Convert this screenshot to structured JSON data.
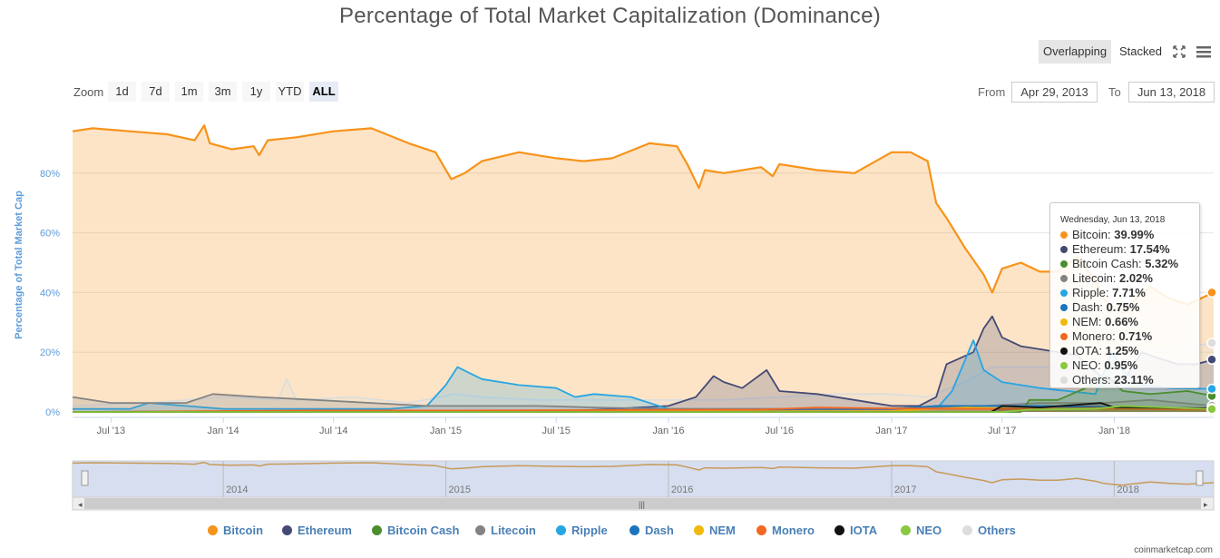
{
  "title": "Percentage of Total Market Capitalization (Dominance)",
  "controls": {
    "overlapping": "Overlapping",
    "stacked": "Stacked",
    "zoom_label": "Zoom",
    "zoom_buttons": [
      "1d",
      "7d",
      "1m",
      "3m",
      "1y",
      "YTD",
      "ALL"
    ],
    "from_label": "From",
    "from_value": "Apr 29, 2013",
    "to_label": "To",
    "to_value": "Jun 13, 2018"
  },
  "tooltip": {
    "date": "Wednesday, Jun 13, 2018",
    "rows": [
      {
        "name": "Bitcoin",
        "value": "39.99%"
      },
      {
        "name": "Ethereum",
        "value": "17.54%"
      },
      {
        "name": "Bitcoin Cash",
        "value": "5.32%"
      },
      {
        "name": "Litecoin",
        "value": "2.02%"
      },
      {
        "name": "Ripple",
        "value": "7.71%"
      },
      {
        "name": "Dash",
        "value": "0.75%"
      },
      {
        "name": "NEM",
        "value": "0.66%"
      },
      {
        "name": "Monero",
        "value": "0.71%"
      },
      {
        "name": "IOTA",
        "value": "1.25%"
      },
      {
        "name": "NEO",
        "value": "0.95%"
      },
      {
        "name": "Others",
        "value": "23.11%"
      }
    ]
  },
  "navigator": {
    "years": [
      "2014",
      "2015",
      "2016",
      "2017",
      "2018"
    ]
  },
  "credit": "coinmarketcap.com",
  "chart_data": {
    "type": "area",
    "title": "Percentage of Total Market Capitalization (Dominance)",
    "ylabel": "Percentage of Total Market Cap",
    "xlabel": "",
    "ylim": [
      0,
      100
    ],
    "y_ticks": [
      "0%",
      "20%",
      "40%",
      "60%",
      "80%"
    ],
    "x_ticks": [
      "Jul '13",
      "Jan '14",
      "Jul '14",
      "Jan '15",
      "Jul '15",
      "Jan '16",
      "Jul '16",
      "Jan '17",
      "Jul '17",
      "Jan '18"
    ],
    "x_range": [
      "2013-04-29",
      "2018-06-13"
    ],
    "grid": true,
    "legend_position": "bottom",
    "series": [
      {
        "name": "Bitcoin",
        "color": "#f7931a",
        "x": [
          "2013-04-29",
          "2013-06-01",
          "2013-08-01",
          "2013-10-01",
          "2013-11-15",
          "2013-12-01",
          "2013-12-10",
          "2014-01-15",
          "2014-02-20",
          "2014-03-01",
          "2014-03-15",
          "2014-05-01",
          "2014-07-01",
          "2014-09-01",
          "2014-11-01",
          "2014-12-15",
          "2015-01-10",
          "2015-02-01",
          "2015-03-01",
          "2015-05-01",
          "2015-07-01",
          "2015-08-15",
          "2015-10-01",
          "2015-12-01",
          "2016-01-15",
          "2016-02-01",
          "2016-02-20",
          "2016-03-01",
          "2016-04-01",
          "2016-06-01",
          "2016-06-20",
          "2016-07-01",
          "2016-09-01",
          "2016-11-01",
          "2017-01-01",
          "2017-02-01",
          "2017-03-01",
          "2017-03-15",
          "2017-04-01",
          "2017-05-01",
          "2017-06-01",
          "2017-06-15",
          "2017-07-01",
          "2017-08-01",
          "2017-09-01",
          "2017-10-01",
          "2017-11-01",
          "2017-12-01",
          "2017-12-15",
          "2018-01-01",
          "2018-01-15",
          "2018-02-01",
          "2018-03-01",
          "2018-04-01",
          "2018-05-01",
          "2018-06-13"
        ],
        "values": [
          94,
          95,
          94,
          93,
          91,
          96,
          90,
          88,
          89,
          86,
          91,
          92,
          94,
          95,
          90,
          87,
          78,
          80,
          84,
          87,
          85,
          84,
          85,
          90,
          89,
          83,
          75,
          81,
          80,
          82,
          79,
          83,
          81,
          80,
          87,
          87,
          84,
          70,
          65,
          55,
          46,
          40,
          48,
          50,
          47,
          47,
          52,
          44,
          38,
          35,
          33,
          37,
          42,
          38,
          36,
          40
        ]
      },
      {
        "name": "Ethereum",
        "color": "#454a75",
        "x": [
          "2013-04-29",
          "2015-08-07",
          "2015-10-01",
          "2016-01-01",
          "2016-02-15",
          "2016-03-15",
          "2016-04-01",
          "2016-05-01",
          "2016-06-10",
          "2016-07-01",
          "2016-09-01",
          "2016-11-01",
          "2017-01-01",
          "2017-02-15",
          "2017-03-15",
          "2017-04-01",
          "2017-05-15",
          "2017-06-01",
          "2017-06-15",
          "2017-07-01",
          "2017-08-01",
          "2017-09-01",
          "2017-11-01",
          "2017-12-15",
          "2018-01-15",
          "2018-02-15",
          "2018-03-15",
          "2018-04-15",
          "2018-05-15",
          "2018-06-13"
        ],
        "values": [
          0,
          0.5,
          1,
          2,
          5,
          12,
          10,
          8,
          14,
          7,
          6,
          4,
          2,
          2,
          5,
          16,
          20,
          28,
          32,
          25,
          22,
          21,
          19,
          11,
          10,
          20,
          18,
          16,
          16,
          17.54
        ]
      },
      {
        "name": "Bitcoin Cash",
        "color": "#4b8e2e",
        "x": [
          "2013-04-29",
          "2017-08-01",
          "2017-08-15",
          "2017-10-01",
          "2017-11-15",
          "2017-12-20",
          "2018-01-15",
          "2018-03-01",
          "2018-05-01",
          "2018-06-13"
        ],
        "values": [
          0,
          0,
          4,
          4,
          8,
          12,
          7,
          6,
          7,
          5.32
        ]
      },
      {
        "name": "Litecoin",
        "color": "#838383",
        "x": [
          "2013-04-29",
          "2013-07-01",
          "2013-11-01",
          "2013-12-15",
          "2014-03-01",
          "2014-06-01",
          "2014-09-01",
          "2014-12-01",
          "2015-03-01",
          "2015-06-01",
          "2015-09-01",
          "2016-01-01",
          "2016-06-01",
          "2017-01-01",
          "2017-04-01",
          "2017-06-01",
          "2017-09-01",
          "2017-12-15",
          "2018-03-01",
          "2018-06-13"
        ],
        "values": [
          5,
          3,
          3,
          6,
          5,
          4,
          3,
          2,
          2,
          2,
          1.5,
          1,
          1,
          1,
          1.5,
          2,
          3,
          3,
          4,
          2.02
        ]
      },
      {
        "name": "Ripple",
        "color": "#27a6e4",
        "x": [
          "2013-04-29",
          "2013-08-01",
          "2013-09-01",
          "2013-11-01",
          "2014-01-01",
          "2014-06-01",
          "2014-10-01",
          "2014-12-01",
          "2015-01-01",
          "2015-01-20",
          "2015-03-01",
          "2015-05-01",
          "2015-07-01",
          "2015-08-01",
          "2015-09-01",
          "2015-11-01",
          "2016-01-01",
          "2016-06-01",
          "2017-01-01",
          "2017-03-20",
          "2017-04-10",
          "2017-05-15",
          "2017-06-01",
          "2017-07-01",
          "2017-09-01",
          "2017-12-01",
          "2017-12-28",
          "2018-01-15",
          "2018-02-15",
          "2018-04-01",
          "2018-06-13"
        ],
        "values": [
          1,
          1,
          3,
          2,
          1,
          1,
          1,
          2,
          9,
          15,
          11,
          9,
          8,
          5,
          6,
          5,
          1,
          1,
          1,
          2,
          7,
          24,
          14,
          10,
          8,
          6,
          20,
          14,
          9,
          8,
          7.71
        ]
      },
      {
        "name": "Dash",
        "color": "#1c75bc",
        "x": [
          "2013-04-29",
          "2015-02-01",
          "2016-01-01",
          "2017-01-01",
          "2017-03-15",
          "2017-06-01",
          "2017-09-01",
          "2018-01-01",
          "2018-06-13"
        ],
        "values": [
          0,
          0.5,
          0.5,
          1,
          2,
          2,
          2,
          1.5,
          0.75
        ]
      },
      {
        "name": "NEM",
        "color": "#f0b90b",
        "x": [
          "2013-04-29",
          "2015-05-01",
          "2016-01-01",
          "2017-01-01",
          "2017-05-01",
          "2017-09-01",
          "2018-01-01",
          "2018-06-13"
        ],
        "values": [
          0,
          0.1,
          0.2,
          0.3,
          1.5,
          1,
          1.3,
          0.66
        ]
      },
      {
        "name": "Monero",
        "color": "#f26822",
        "x": [
          "2013-04-29",
          "2014-06-01",
          "2015-01-01",
          "2016-06-01",
          "2016-09-01",
          "2017-01-01",
          "2017-06-01",
          "2018-01-01",
          "2018-06-13"
        ],
        "values": [
          0,
          0.5,
          0.5,
          0.8,
          1.5,
          1.2,
          1,
          1,
          0.71
        ]
      },
      {
        "name": "IOTA",
        "color": "#111111",
        "x": [
          "2013-04-29",
          "2017-06-13",
          "2017-07-01",
          "2017-09-01",
          "2017-12-10",
          "2018-01-01",
          "2018-06-13"
        ],
        "values": [
          0,
          0,
          2,
          1.5,
          3,
          1.5,
          1.25
        ]
      },
      {
        "name": "NEO",
        "color": "#8ac83e",
        "x": [
          "2013-04-29",
          "2017-07-01",
          "2017-08-15",
          "2017-12-01",
          "2018-01-15",
          "2018-06-13"
        ],
        "values": [
          0,
          0,
          0.8,
          1,
          2,
          0.95
        ]
      },
      {
        "name": "Others",
        "color": "#dddddd",
        "x": [
          "2013-04-29",
          "2013-09-01",
          "2014-01-01",
          "2014-04-01",
          "2014-04-15",
          "2014-05-01",
          "2014-08-01",
          "2014-11-01",
          "2015-01-15",
          "2015-03-01",
          "2015-06-01",
          "2015-09-01",
          "2016-01-01",
          "2016-04-01",
          "2016-07-01",
          "2016-10-01",
          "2017-01-01",
          "2017-03-01",
          "2017-05-01",
          "2017-06-15",
          "2017-08-01",
          "2017-10-01",
          "2017-12-01",
          "2018-01-15",
          "2018-03-01",
          "2018-06-13"
        ],
        "values": [
          2,
          3,
          5,
          4,
          11,
          4,
          5,
          3,
          6,
          5,
          4,
          4,
          4,
          4,
          5,
          6,
          6,
          5,
          10,
          15,
          15,
          15,
          14,
          22,
          20,
          23.11
        ]
      }
    ]
  }
}
